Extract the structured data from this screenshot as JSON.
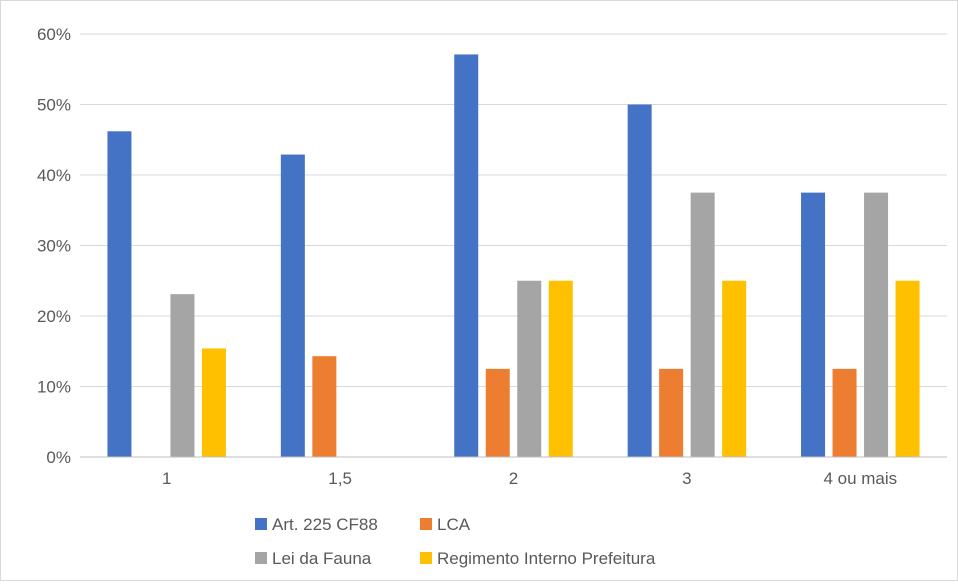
{
  "chart_data": {
    "type": "bar",
    "title": "",
    "xlabel": "",
    "ylabel": "",
    "categories": [
      "1",
      "1,5",
      "2",
      "3",
      "4 ou mais"
    ],
    "series": [
      {
        "name": "Art. 225 CF88",
        "color": "#4472c4",
        "values": [
          46.2,
          42.9,
          57.1,
          50.0,
          37.5
        ]
      },
      {
        "name": "LCA",
        "color": "#ed7d31",
        "values": [
          null,
          14.3,
          12.5,
          12.5,
          12.5
        ]
      },
      {
        "name": "Lei da Fauna",
        "color": "#a5a5a5",
        "values": [
          23.1,
          null,
          25.0,
          37.5,
          37.5
        ]
      },
      {
        "name": "Regimento Interno Prefeitura",
        "color": "#ffc000",
        "values": [
          15.4,
          null,
          25.0,
          25.0,
          25.0
        ]
      }
    ],
    "ylim": [
      0,
      60
    ],
    "yticks": [
      "0%",
      "10%",
      "20%",
      "30%",
      "40%",
      "50%",
      "60%"
    ],
    "grid": true,
    "legend_position": "bottom"
  }
}
